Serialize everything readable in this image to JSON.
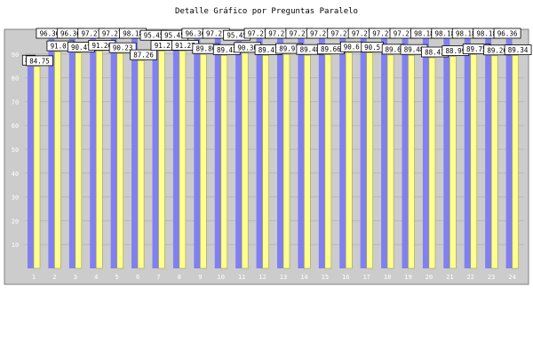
{
  "chart_data": {
    "type": "bar",
    "title": "Detalle Gráfico por Preguntas Paralelo",
    "categories": [
      "1",
      "2",
      "3",
      "4",
      "5",
      "6",
      "7",
      "8",
      "9",
      "10",
      "11",
      "12",
      "13",
      "14",
      "15",
      "16",
      "17",
      "18",
      "19",
      "20",
      "21",
      "22",
      "23",
      "24"
    ],
    "series": [
      {
        "values": [
          85,
          96.36,
          96.36,
          97.27,
          97.27,
          98.18,
          95.45,
          95.45,
          96.36,
          97.27,
          95.45,
          97.27,
          97.27,
          97.27,
          97.27,
          97.27,
          97.27,
          97.27,
          97.27,
          98.18,
          98.18,
          98.18,
          98.18,
          96.36
        ]
      },
      {
        "values": [
          84.75,
          91.01,
          90.47,
          91.26,
          90.23,
          87.26,
          91.21,
          91.27,
          89.86,
          89.43,
          90.36,
          89.41,
          89.91,
          89.48,
          89.66,
          90.6,
          90.5,
          89.6,
          89.48,
          88.43,
          88.99,
          89.75,
          89.26,
          89.34
        ]
      }
    ],
    "series_labels": [
      [
        "85",
        "96.36",
        "96.36",
        "97.27",
        "97.27",
        "98.18",
        "95.45",
        "95.45",
        "96.36",
        "97.27",
        "95.45",
        "97.27",
        "97.27",
        "97.27",
        "97.27",
        "97.27",
        "97.27",
        "97.27",
        "97.27",
        "98.18",
        "98.18",
        "98.18",
        "98.18",
        "96.36"
      ],
      [
        "84.75",
        "91.01",
        "90.47",
        "91.26",
        "90.23",
        "87.26",
        "91.21",
        "91.27",
        "89.86",
        "89.43",
        "90.36",
        "89.41",
        "89.91",
        "89.48",
        "89.66",
        "90.6",
        "90.5",
        "89.6",
        "89.48",
        "88.43",
        "88.99",
        "89.75",
        "89.26",
        "89.34"
      ]
    ],
    "yticks": [
      "10",
      "20",
      "30",
      "40",
      "50",
      "60",
      "70",
      "80",
      "90"
    ],
    "ylim": [
      0,
      100
    ],
    "grid": true,
    "legend": "none",
    "colors": {
      "series1": "#8080f0",
      "series2": "#ffff90",
      "plot_bg": "#cccccc",
      "frame": "#808080",
      "label_bg": "#ffffff",
      "tick_text": "#ffffff"
    }
  }
}
